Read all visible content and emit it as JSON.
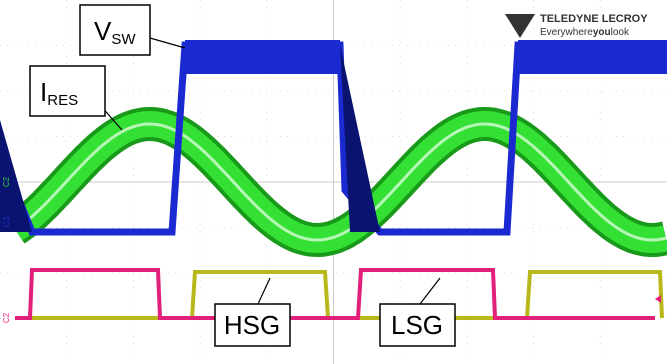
{
  "labels": {
    "vsw": {
      "main": "V",
      "sub": "SW"
    },
    "ires": {
      "main": "I",
      "sub": "RES"
    },
    "hsg": "HSG",
    "lsg": "LSG"
  },
  "logo": {
    "brand": "TELEDYNE LECROY",
    "tagline": [
      "Everywhere",
      "you",
      "look"
    ]
  },
  "channel_markers": [
    "C2",
    "C3",
    "C2"
  ]
}
